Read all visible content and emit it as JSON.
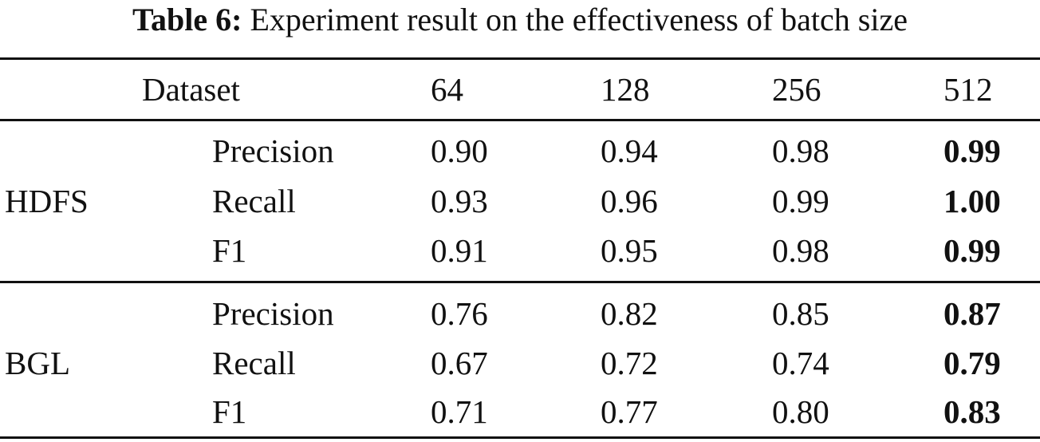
{
  "caption": {
    "label": "Table 6:",
    "text": "Experiment result on the effectiveness of batch size"
  },
  "table": {
    "header": {
      "dataset": "Dataset",
      "batch_sizes": [
        "64",
        "128",
        "256",
        "512"
      ]
    },
    "groups": [
      {
        "dataset": "HDFS",
        "rows": [
          {
            "metric": "Precision",
            "values": [
              "0.90",
              "0.94",
              "0.98",
              "0.99"
            ]
          },
          {
            "metric": "Recall",
            "values": [
              "0.93",
              "0.96",
              "0.99",
              "1.00"
            ]
          },
          {
            "metric": "F1",
            "values": [
              "0.91",
              "0.95",
              "0.98",
              "0.99"
            ]
          }
        ]
      },
      {
        "dataset": "BGL",
        "rows": [
          {
            "metric": "Precision",
            "values": [
              "0.76",
              "0.82",
              "0.85",
              "0.87"
            ]
          },
          {
            "metric": "Recall",
            "values": [
              "0.67",
              "0.72",
              "0.74",
              "0.79"
            ]
          },
          {
            "metric": "F1",
            "values": [
              "0.71",
              "0.77",
              "0.80",
              "0.83"
            ]
          }
        ]
      }
    ],
    "bold_column": "512"
  }
}
